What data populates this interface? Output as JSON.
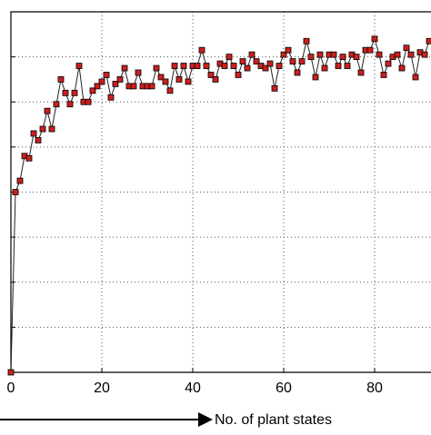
{
  "chart_data": {
    "type": "line",
    "x_label": "No. of plant states",
    "x": [
      0,
      1,
      2,
      3,
      4,
      5,
      6,
      7,
      8,
      9,
      10,
      11,
      12,
      13,
      14,
      15,
      16,
      17,
      18,
      19,
      20,
      21,
      22,
      23,
      24,
      25,
      26,
      27,
      28,
      29,
      30,
      31,
      32,
      33,
      34,
      35,
      36,
      37,
      38,
      39,
      40,
      41,
      42,
      43,
      44,
      45,
      46,
      47,
      48,
      49,
      50,
      51,
      52,
      53,
      54,
      55,
      56,
      57,
      58,
      59,
      60,
      61,
      62,
      63,
      64,
      65,
      66,
      67,
      68,
      69,
      70,
      71,
      72,
      73,
      74,
      75,
      76,
      77,
      78,
      79,
      80,
      81,
      82,
      83,
      84,
      85,
      86,
      87,
      88,
      89,
      90,
      91,
      92
    ],
    "series": [
      {
        "color": "#cc1f1f",
        "values": [
          0,
          4,
          4.25,
          4.8,
          4.75,
          5.3,
          5.15,
          5.4,
          5.8,
          5.4,
          5.95,
          6.5,
          6.2,
          5.95,
          6.2,
          6.8,
          6,
          6,
          6.25,
          6.35,
          6.45,
          6.6,
          6.1,
          6.4,
          6.5,
          6.75,
          6.35,
          6.35,
          6.65,
          6.35,
          6.35,
          6.35,
          6.75,
          6.55,
          6.45,
          6.25,
          6.8,
          6.5,
          6.8,
          6.45,
          6.8,
          6.8,
          7.15,
          6.8,
          6.6,
          6.5,
          6.85,
          6.8,
          7,
          6.8,
          6.6,
          6.9,
          6.75,
          7.05,
          6.9,
          6.8,
          6.75,
          6.85,
          6.3,
          6.8,
          7.05,
          7.15,
          6.9,
          6.65,
          6.9,
          7.35,
          7,
          6.55,
          7.05,
          6.75,
          7.05,
          7.05,
          6.8,
          7,
          6.8,
          7.05,
          7,
          6.65,
          7.15,
          7.15,
          7.4,
          7.05,
          6.6,
          6.85,
          7,
          7.05,
          6.75,
          7.2,
          7.05,
          6.55,
          7.1,
          7.05,
          7.35
        ]
      }
    ],
    "xlim": [
      0,
      92.4
    ],
    "xticks": [
      0,
      20,
      40,
      60,
      80
    ],
    "ylim": [
      0,
      8
    ],
    "yticks": [
      0,
      1,
      2,
      3,
      4,
      5,
      6,
      7,
      8
    ],
    "grid": true
  }
}
